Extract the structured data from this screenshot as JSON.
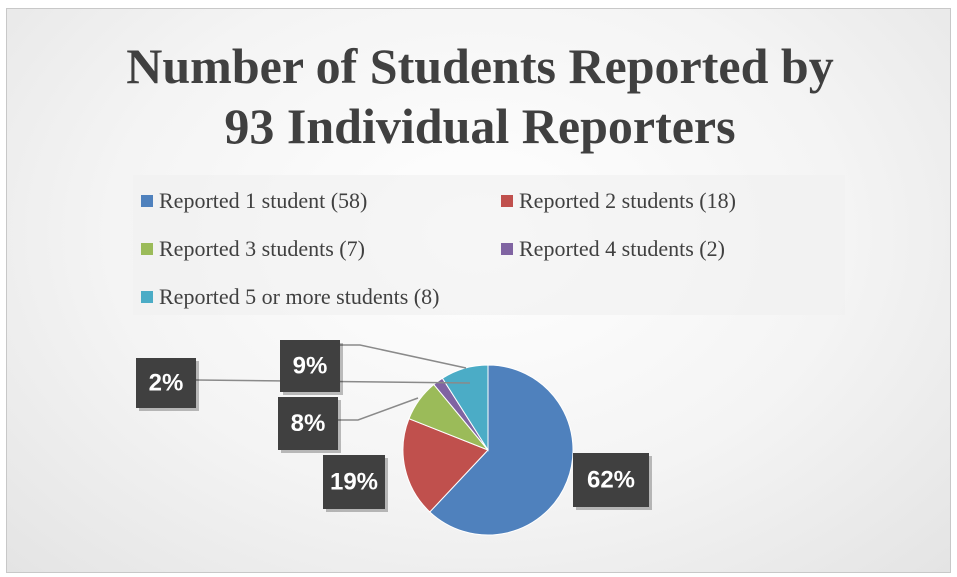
{
  "chart_data": {
    "type": "pie",
    "title": "Number of Students Reported by 93 Individual Reporters",
    "categories": [
      "Reported 1 student (58)",
      "Reported 2 students (18)",
      "Reported 3 students (7)",
      "Reported 4 students (2)",
      "Reported 5 or more students (8)"
    ],
    "values": [
      62,
      19,
      8,
      2,
      9
    ],
    "value_labels": [
      "62%",
      "19%",
      "8%",
      "2%",
      "9%"
    ],
    "colors": [
      "#4f81bd",
      "#c0504d",
      "#9bbb59",
      "#8064a2",
      "#4bacc6"
    ],
    "legend": "top"
  }
}
